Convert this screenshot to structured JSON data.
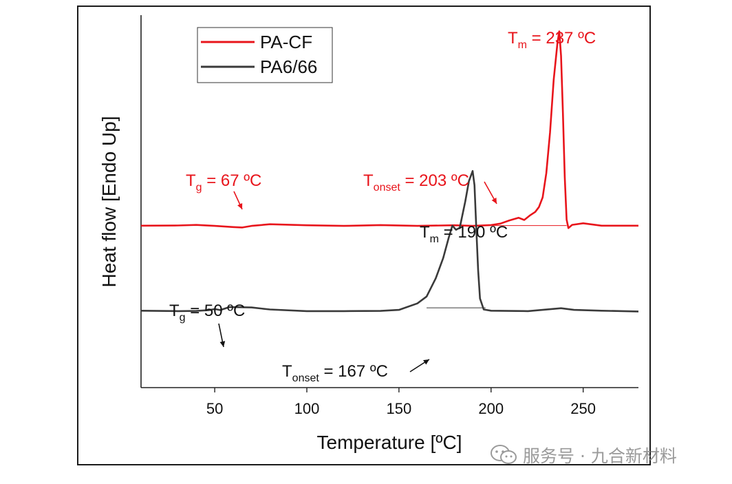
{
  "chart_data": {
    "type": "line",
    "title": "",
    "xlabel": "Temperature [ºC]",
    "ylabel": "Heat flow [Endo Up]",
    "xlim": [
      10,
      280
    ],
    "xticks": [
      50,
      100,
      150,
      200,
      250
    ],
    "yticks_shown": false,
    "legend": {
      "placement": "top-left",
      "entries": [
        "PA-CF",
        "PA6/66"
      ]
    },
    "series": [
      {
        "name": "PA-CF",
        "color": "#e8141b",
        "offset": 10,
        "points": [
          [
            10,
            0
          ],
          [
            30,
            0.05
          ],
          [
            40,
            0.18
          ],
          [
            50,
            -0.05
          ],
          [
            60,
            -0.35
          ],
          [
            65,
            -0.45
          ],
          [
            70,
            -0.05
          ],
          [
            80,
            0.35
          ],
          [
            100,
            0.1
          ],
          [
            120,
            -0.05
          ],
          [
            140,
            0.15
          ],
          [
            160,
            -0.05
          ],
          [
            180,
            0.1
          ],
          [
            190,
            -0.05
          ],
          [
            200,
            0.15
          ],
          [
            205,
            0.5
          ],
          [
            210,
            1.3
          ],
          [
            215,
            1.95
          ],
          [
            218,
            1.4
          ],
          [
            221,
            2.5
          ],
          [
            224,
            3.4
          ],
          [
            226,
            4.6
          ],
          [
            228,
            7
          ],
          [
            230,
            13
          ],
          [
            232,
            23
          ],
          [
            234,
            36
          ],
          [
            236,
            45
          ],
          [
            237,
            48
          ],
          [
            238,
            42
          ],
          [
            239,
            28
          ],
          [
            240,
            12
          ],
          [
            241,
            1.5
          ],
          [
            242,
            -0.6
          ],
          [
            244,
            0.2
          ],
          [
            250,
            0.6
          ],
          [
            260,
            0
          ],
          [
            280,
            0
          ]
        ]
      },
      {
        "name": "PA6/66",
        "color": "#3a3a3a",
        "offset": -11,
        "points": [
          [
            10,
            0
          ],
          [
            30,
            -0.1
          ],
          [
            40,
            -0.05
          ],
          [
            47,
            0.15
          ],
          [
            50,
            0.4
          ],
          [
            53,
            0.15
          ],
          [
            58,
            0.9
          ],
          [
            70,
            0.8
          ],
          [
            80,
            0.3
          ],
          [
            100,
            -0.1
          ],
          [
            120,
            -0.1
          ],
          [
            140,
            -0.05
          ],
          [
            150,
            0.2
          ],
          [
            160,
            1.8
          ],
          [
            165,
            3.5
          ],
          [
            170,
            8
          ],
          [
            174,
            13
          ],
          [
            177,
            18
          ],
          [
            179,
            21
          ],
          [
            181,
            20
          ],
          [
            183,
            20.5
          ],
          [
            186,
            27
          ],
          [
            188,
            32
          ],
          [
            190,
            34.5
          ],
          [
            191,
            31
          ],
          [
            192,
            20
          ],
          [
            193,
            10
          ],
          [
            194,
            3
          ],
          [
            196,
            0.3
          ],
          [
            200,
            0
          ],
          [
            220,
            -0.1
          ],
          [
            238,
            0.6
          ],
          [
            245,
            0.2
          ],
          [
            260,
            0
          ],
          [
            280,
            -0.2
          ]
        ]
      }
    ],
    "baselines": [
      {
        "series": "PA-CF",
        "x": [
          200,
          241
        ]
      },
      {
        "series": "PA6/66",
        "x": [
          165,
          197
        ]
      }
    ],
    "annotations": [
      {
        "series": "PA-CF",
        "label": "T",
        "sub": "g",
        "text": " = 67 ºC",
        "target_x": 67,
        "color": "#e8141b"
      },
      {
        "series": "PA-CF",
        "label": "T",
        "sub": "onset",
        "text": " = 203 ºC",
        "target_x": 203,
        "color": "#e8141b"
      },
      {
        "series": "PA-CF",
        "label": "T",
        "sub": "m",
        "text": " = 237 ºC",
        "target_x": 237,
        "color": "#e8141b"
      },
      {
        "series": "PA6/66",
        "label": "T",
        "sub": "g",
        "text": " = 50 ºC",
        "target_x": 50,
        "color": "#111111"
      },
      {
        "series": "PA6/66",
        "label": "T",
        "sub": "onset",
        "text": " = 167 ºC",
        "target_x": 167,
        "color": "#111111"
      },
      {
        "series": "PA6/66",
        "label": "T",
        "sub": "m",
        "text": " = 190 ºC",
        "target_x": 190,
        "color": "#111111"
      }
    ]
  },
  "watermark": {
    "text": "服务号 · 九合新材料",
    "icon": "wechat-icon"
  }
}
